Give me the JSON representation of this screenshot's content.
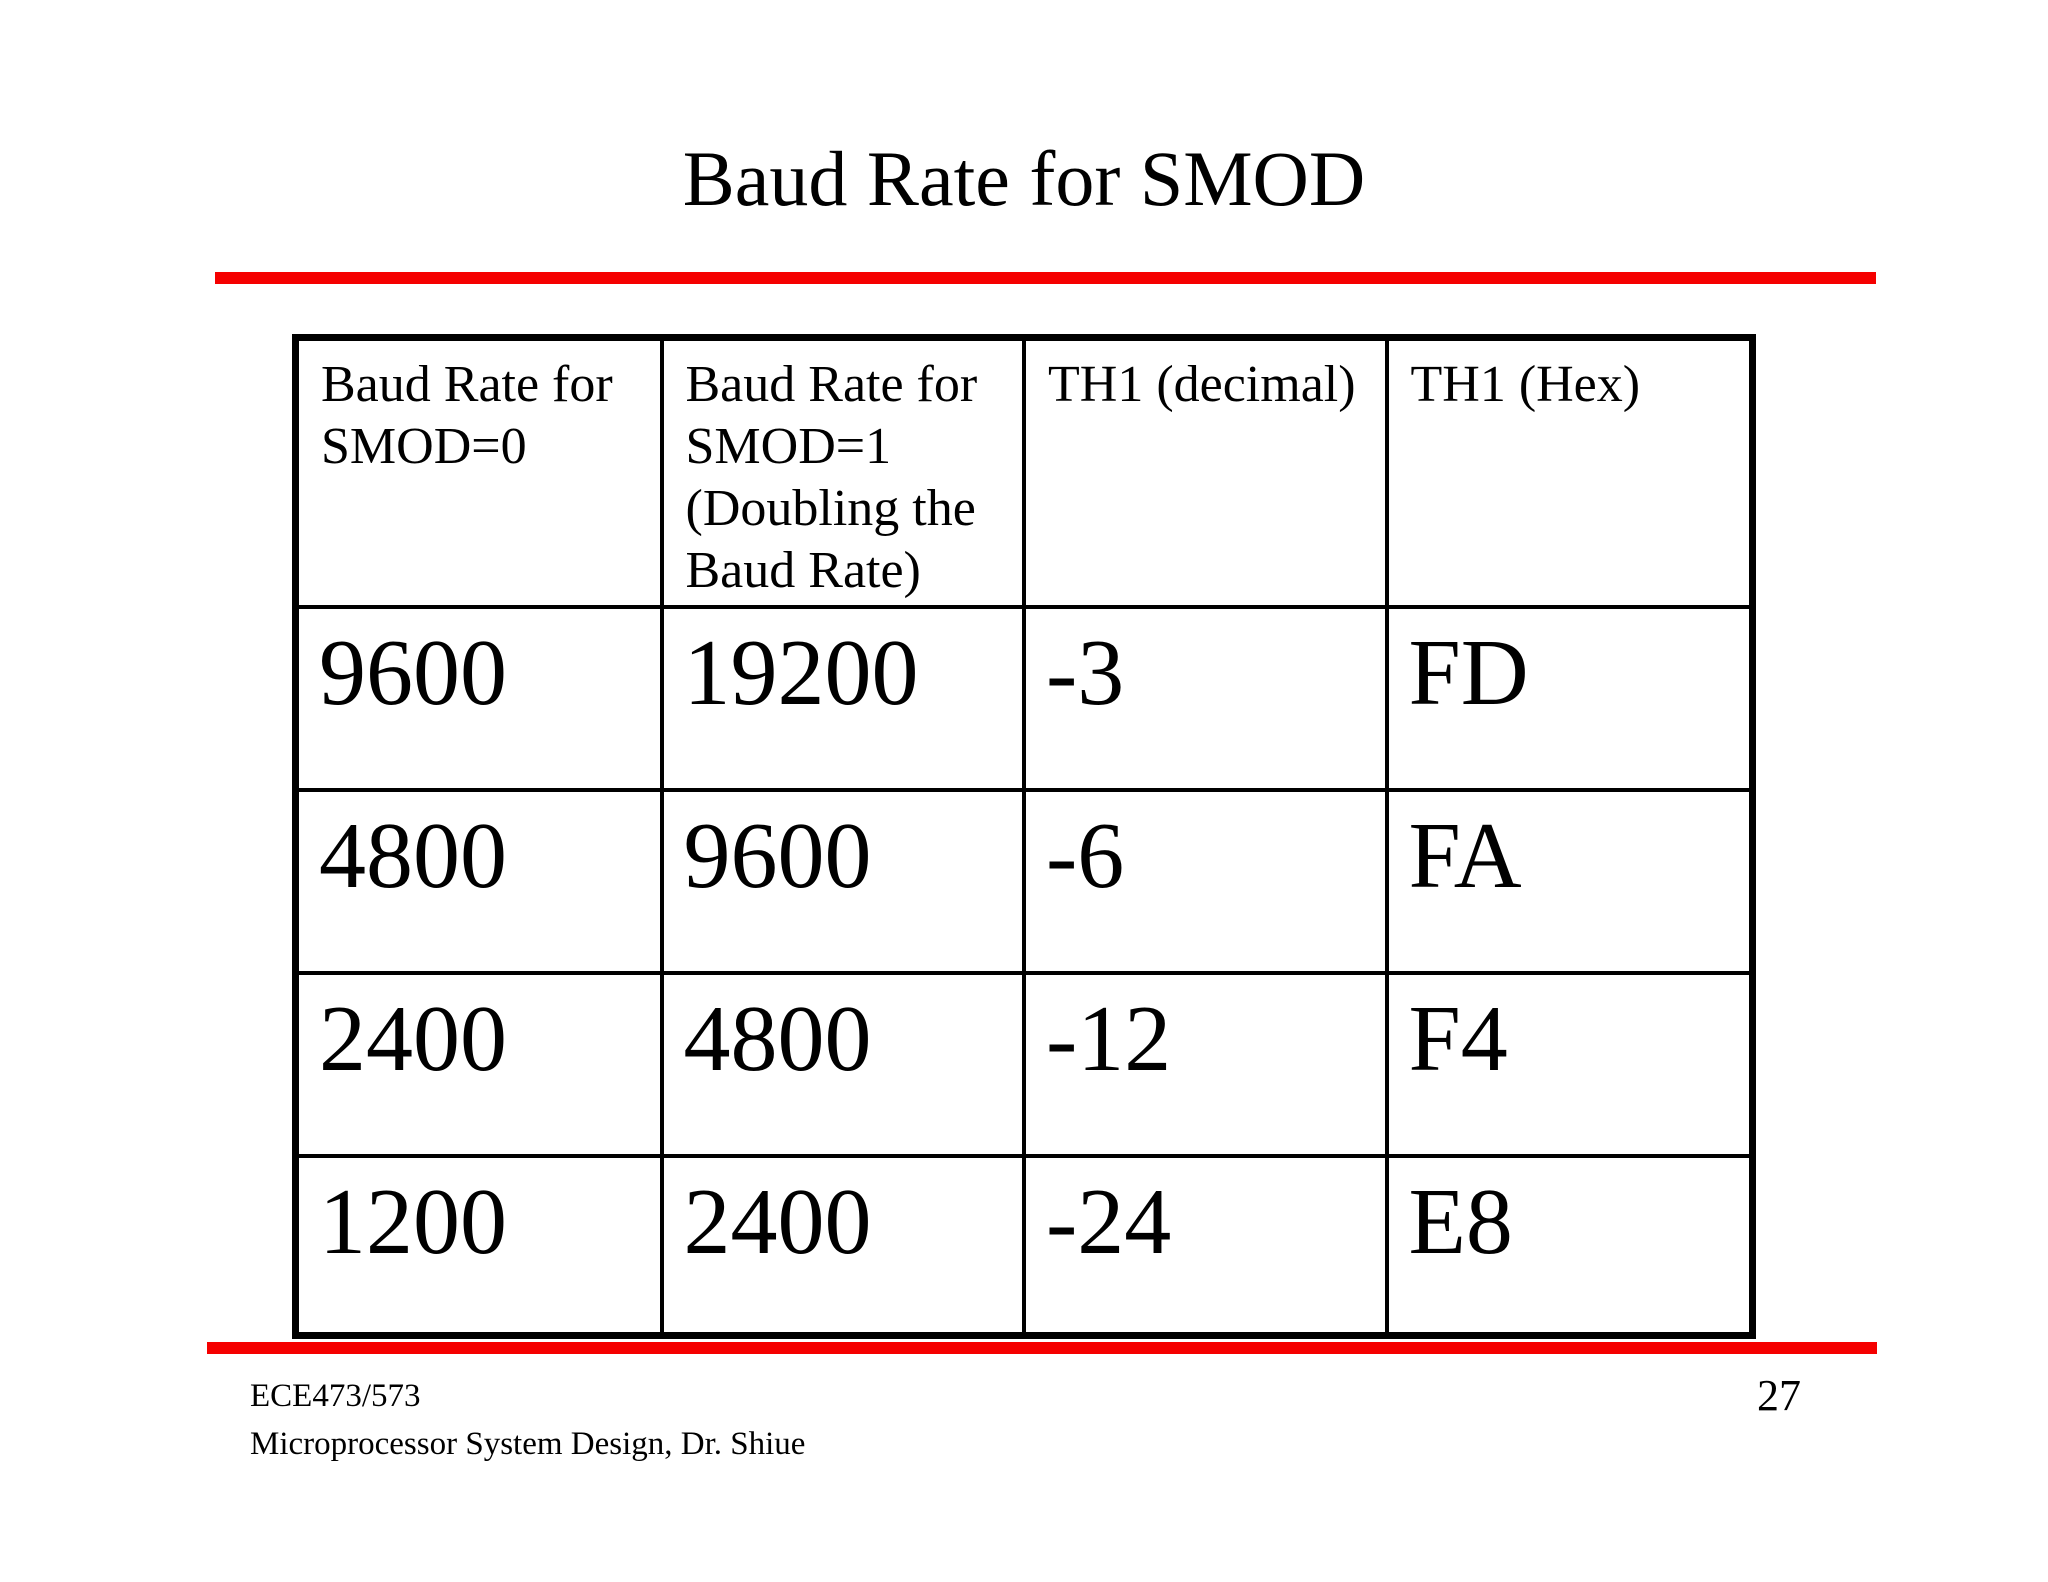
{
  "slide": {
    "title": "Baud Rate for SMOD",
    "accent_color": "#f50000",
    "table": {
      "headers": [
        "Baud Rate for SMOD=0",
        "Baud Rate for SMOD=1 (Doubling the Baud Rate)",
        "TH1 (decimal)",
        "TH1 (Hex)"
      ],
      "rows": [
        [
          "9600",
          "19200",
          "-3",
          "FD"
        ],
        [
          "4800",
          "9600",
          "-6",
          "FA"
        ],
        [
          "2400",
          "4800",
          "-12",
          "F4"
        ],
        [
          "1200",
          "2400",
          "-24",
          "E8"
        ]
      ]
    },
    "footer": {
      "course": "ECE473/573",
      "subtitle": "Microprocessor System Design, Dr. Shiue",
      "page_number": "27"
    }
  }
}
